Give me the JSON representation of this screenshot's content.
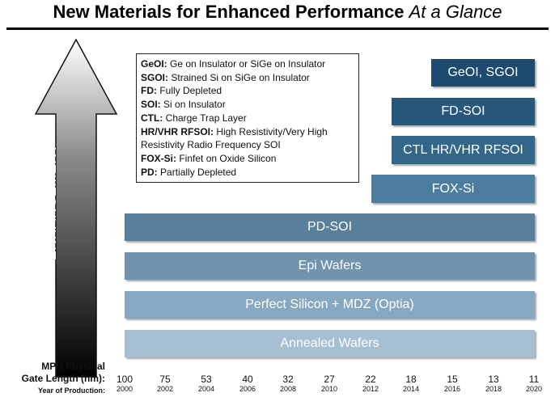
{
  "title": {
    "main": "New Materials for Enhanced Performance",
    "sub": "At a Glance"
  },
  "arrow": {
    "line1": "PERFORMANCE",
    "line2": "ENHANCEMENT"
  },
  "legend": [
    {
      "abbr": "GeOI:",
      "text": "Ge on Insulator or SiGe on Insulator"
    },
    {
      "abbr": "SGOI:",
      "text": "Strained Si on SiGe on Insulator"
    },
    {
      "abbr": "FD:",
      "text": "Fully Depleted"
    },
    {
      "abbr": "SOI:",
      "text": "Si on Insulator"
    },
    {
      "abbr": "CTL:",
      "text": "Charge Trap Layer"
    },
    {
      "abbr": "HR/VHR RFSOI:",
      "text": "High Resistivity/Very High Resistivity Radio Frequency SOI"
    },
    {
      "abbr": "FOX-Si:",
      "text": "Finfet on Oxide Silicon"
    },
    {
      "abbr": "PD:",
      "text": "Partially Depleted"
    }
  ],
  "bars": {
    "geoi": "GeOI, SGOI",
    "fdsoi": "FD-SOI",
    "ctl": "CTL HR/VHR RFSOI",
    "fox": "FOX-Si",
    "pdsoi": "PD-SOI",
    "epi": "Epi Wafers",
    "perfect": "Perfect Silicon + MDZ (Optia)",
    "annealed": "Annealed Wafers"
  },
  "axis": {
    "label1": "MPU Physical",
    "label2": "Gate Length (nm):",
    "label3": "Year of Production:",
    "gate_lengths": [
      "100",
      "75",
      "53",
      "40",
      "32",
      "27",
      "22",
      "18",
      "15",
      "13",
      "11"
    ],
    "years": [
      "2000",
      "2002",
      "2004",
      "2006",
      "2008",
      "2010",
      "2012",
      "2014",
      "2016",
      "2018",
      "2020"
    ]
  },
  "colors": {
    "arrow_top": "#ffffff",
    "arrow_bottom": "#000000",
    "bar_dark": "#1d4a6e",
    "bar_light": "#a7bfd2"
  }
}
